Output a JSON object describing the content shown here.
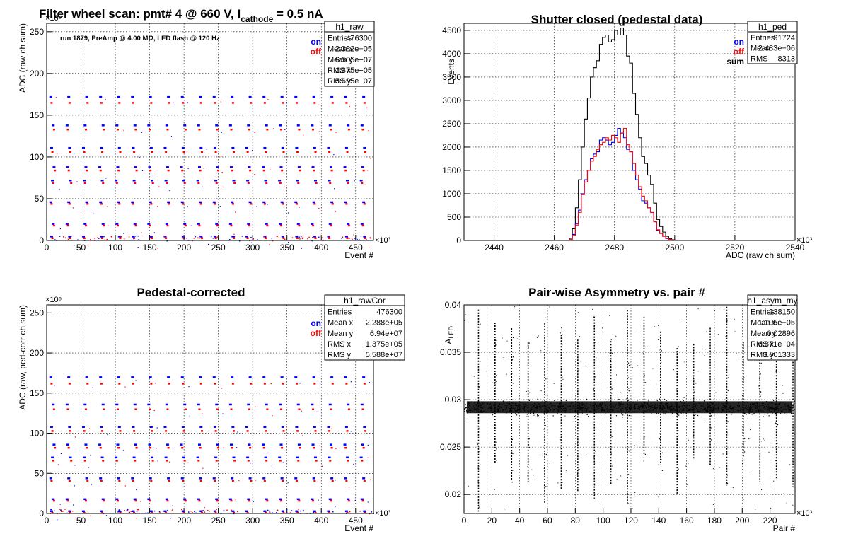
{
  "chart_data": [
    {
      "id": "p1",
      "type": "scatter",
      "title": "Filter wheel scan: pmt#   4 @   660 V, I",
      "title_sub": "cathode",
      "title_tail": "  = 0.5 nA",
      "annotation": "run 1879, PreAmp @ 4.00 MΩ, LED flash @  120 Hz",
      "xlabel": "Event #",
      "ylabel": "ADC (raw ch sum)",
      "xmult": "×10³",
      "ymult": "×10⁶",
      "xlim": [
        0,
        476
      ],
      "ylim": [
        0,
        260
      ],
      "xticks": [
        0,
        50,
        100,
        150,
        200,
        250,
        300,
        350,
        400,
        450
      ],
      "yticks": [
        0,
        50,
        100,
        150,
        200,
        250
      ],
      "legend": [
        {
          "name": "on",
          "color": "#0000ff"
        },
        {
          "name": "off",
          "color": "#ff0000"
        }
      ],
      "stats": {
        "name": "h1_raw",
        "rows": [
          [
            "Entries",
            "476300"
          ],
          [
            "Mean x",
            "2.382e+05"
          ],
          [
            "Mean y",
            "6.505e+07"
          ],
          [
            "RMS x",
            "1.375e+05"
          ],
          [
            "RMS y",
            "5.695e+07"
          ]
        ]
      },
      "levels_on": [
        172,
        138,
        111,
        88,
        72,
        46,
        20,
        5
      ],
      "levels_off": [
        165,
        133,
        106,
        84,
        69,
        44,
        18,
        3
      ],
      "period": 23.8
    },
    {
      "id": "p2",
      "type": "histogram",
      "title": "Shutter closed (pedestal data)",
      "xlabel": "ADC (raw ch sum)",
      "ylabel": "Events",
      "xmult": "×10³",
      "xlim": [
        2430,
        2540
      ],
      "ylim": [
        0,
        4650
      ],
      "xticks": [
        2440,
        2460,
        2480,
        2500,
        2520,
        2540
      ],
      "yticks": [
        0,
        500,
        1000,
        1500,
        2000,
        2500,
        3000,
        3500,
        4000,
        4500
      ],
      "legend": [
        {
          "name": "on",
          "color": "#0000ff"
        },
        {
          "name": "off",
          "color": "#ff0000"
        },
        {
          "name": "sum",
          "color": "#000000"
        }
      ],
      "stats": {
        "name": "h1_ped",
        "rows": [
          [
            "Entries",
            "91724"
          ],
          [
            "Mean",
            "2.483e+06"
          ],
          [
            "RMS",
            "8313"
          ]
        ]
      },
      "bin_start": 2465,
      "bin_width": 1,
      "series": [
        {
          "name": "sum",
          "color": "#000000",
          "values": [
            50,
            250,
            700,
            1300,
            2000,
            2600,
            3050,
            3500,
            3700,
            3850,
            4200,
            4350,
            4400,
            4250,
            4300,
            4500,
            4400,
            4550,
            4400,
            3950,
            3800,
            3150,
            2700,
            2200,
            1800,
            1650,
            1400,
            1200,
            800,
            450,
            300,
            180,
            90,
            40,
            15,
            5
          ]
        },
        {
          "name": "on",
          "color": "#0000ff",
          "values": [
            25,
            130,
            360,
            650,
            1000,
            1300,
            1500,
            1750,
            1850,
            1900,
            2150,
            2200,
            2150,
            2050,
            2100,
            2250,
            2400,
            2300,
            2200,
            1950,
            1900,
            1500,
            1300,
            1100,
            850,
            800,
            700,
            600,
            400,
            220,
            150,
            90,
            40,
            20,
            8,
            2
          ]
        },
        {
          "name": "off",
          "color": "#ff0000",
          "values": [
            25,
            110,
            330,
            600,
            980,
            1250,
            1500,
            1700,
            1800,
            1950,
            2050,
            2100,
            2200,
            2150,
            2250,
            2200,
            2100,
            2300,
            2400,
            2050,
            1900,
            1650,
            1400,
            1150,
            950,
            850,
            700,
            600,
            400,
            230,
            150,
            90,
            50,
            20,
            7,
            3
          ]
        }
      ]
    },
    {
      "id": "p3",
      "type": "scatter",
      "title": "Pedestal-corrected",
      "xlabel": "Event #",
      "ylabel": "ADC (raw, ped-corr ch sum)",
      "xmult": "×10³",
      "ymult": "×10⁶",
      "xlim": [
        0,
        476
      ],
      "ylim": [
        0,
        260
      ],
      "xticks": [
        0,
        50,
        100,
        150,
        200,
        250,
        300,
        350,
        400,
        450
      ],
      "yticks": [
        0,
        50,
        100,
        150,
        200,
        250
      ],
      "legend": [
        {
          "name": "on",
          "color": "#0000ff"
        },
        {
          "name": "off",
          "color": "#ff0000"
        }
      ],
      "stats": {
        "name": "h1_rawCor",
        "rows": [
          [
            "Entries",
            "476300"
          ],
          [
            "Mean x",
            "2.288e+05"
          ],
          [
            "Mean y",
            "6.94e+07"
          ],
          [
            "RMS x",
            "1.375e+05"
          ],
          [
            "RMS y",
            "5.588e+07"
          ]
        ]
      },
      "levels_on": [
        170,
        136,
        108,
        86,
        70,
        44,
        18,
        3
      ],
      "levels_off": [
        162,
        130,
        103,
        82,
        66,
        41,
        16,
        1
      ],
      "period": 23.8
    },
    {
      "id": "p4",
      "type": "scatter",
      "title": "Pair-wise Asymmetry vs. pair #",
      "xlabel": "Pair #",
      "ylabel": "A",
      "ylabel_sub": "LED",
      "xmult": "×10³",
      "xlim": [
        0,
        238
      ],
      "ylim": [
        0.018,
        0.04
      ],
      "xticks": [
        0,
        20,
        40,
        60,
        80,
        100,
        120,
        140,
        160,
        180,
        200,
        220
      ],
      "yticks": [
        0.02,
        0.025,
        0.03,
        0.035,
        0.04
      ],
      "stats": {
        "name": "h1_asym_my",
        "rows": [
          [
            "Entries",
            "238150"
          ],
          [
            "Mean x",
            "1.195e+05"
          ],
          [
            "Mean y",
            "0.02896"
          ],
          [
            "RMS x",
            "6.871e+04"
          ],
          [
            "RMS y",
            "0.001333"
          ]
        ]
      },
      "band_center": 0.0292,
      "band_halfwidth": 0.0007,
      "spike_period": 11.9
    }
  ]
}
